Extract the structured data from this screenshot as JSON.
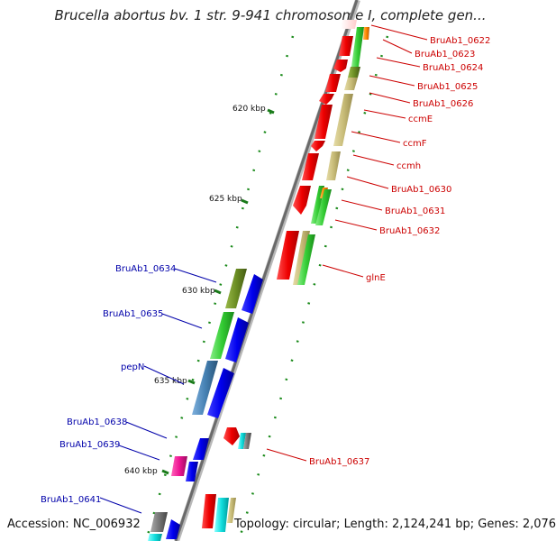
{
  "title": "Brucella abortus bv. 1 str. 9-941 chromosome I, complete gen...",
  "footer": {
    "accession": "Accession: NC_006932",
    "topology": "Topology: circular; Length: 2,124,241 bp; Genes: 2,076"
  },
  "colors": {
    "backbone": "#808080",
    "forward_label": "#cc0000",
    "reverse_label": "#0000aa",
    "tick": "#117711",
    "gene_red": "#ee0000",
    "gene_blue": "#0000ee",
    "cds_green": "#33cc33",
    "cds_khaki": "#c8bc78",
    "cds_olive": "#6b8e23",
    "cds_steel": "#4682b4",
    "cds_magenta": "#ee1493",
    "cds_gray": "#777777",
    "cds_cyan": "#11dddd",
    "cds_orange": "#ff8800"
  },
  "scale_labels": [
    {
      "text": "620 kbp",
      "kbp": 620
    },
    {
      "text": "625 kbp",
      "kbp": 625
    },
    {
      "text": "630 kbp",
      "kbp": 630
    },
    {
      "text": "635 kbp",
      "kbp": 635
    },
    {
      "text": "640 kbp",
      "kbp": 640
    }
  ],
  "forward_genes": [
    {
      "label": "BruAb1_0622"
    },
    {
      "label": "BruAb1_0623"
    },
    {
      "label": "BruAb1_0624"
    },
    {
      "label": "BruAb1_0625"
    },
    {
      "label": "BruAb1_0626"
    },
    {
      "label": "ccmE"
    },
    {
      "label": "ccmF"
    },
    {
      "label": "ccmh"
    },
    {
      "label": "BruAb1_0630"
    },
    {
      "label": "BruAb1_0631"
    },
    {
      "label": "BruAb1_0632"
    },
    {
      "label": "glnE"
    },
    {
      "label": "BruAb1_0637"
    }
  ],
  "reverse_genes": [
    {
      "label": "BruAb1_0634"
    },
    {
      "label": "BruAb1_0635"
    },
    {
      "label": "pepN"
    },
    {
      "label": "BruAb1_0638"
    },
    {
      "label": "BruAb1_0639"
    },
    {
      "label": "BruAb1_0641"
    }
  ]
}
